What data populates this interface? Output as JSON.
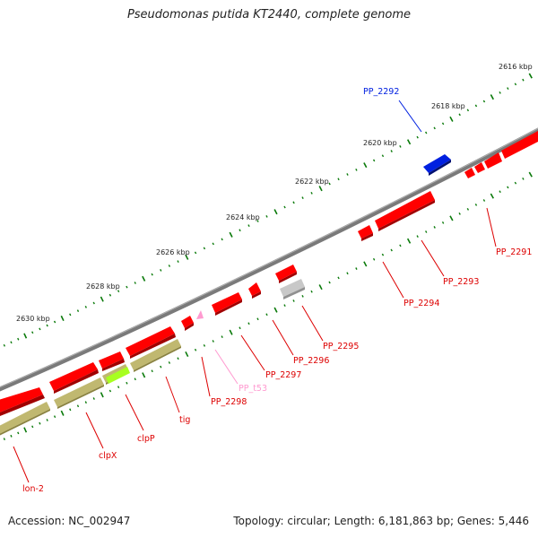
{
  "title": "Pseudomonas putida KT2440, complete genome",
  "footer": {
    "accession": "Accession: NC_002947",
    "summary": "Topology: circular; Length: 6,181,863 bp; Genes: 5,446"
  },
  "colors": {
    "gene_forward": "#ff0000",
    "gene_blue": "#0020e0",
    "gene_grey": "#c8c8c8",
    "gene_pink": "#ff9ad0",
    "operon": "#c0b870",
    "highlight_green": "#a8ff20",
    "backbone": "#808080",
    "tick": "#0a7a0a"
  },
  "tick_labels": [
    "2616 kbp",
    "2618 kbp",
    "2620 kbp",
    "2622 kbp",
    "2624 kbp",
    "2626 kbp",
    "2628 kbp",
    "2630 kbp"
  ],
  "genes": [
    {
      "label": "PP_2291",
      "color": "red"
    },
    {
      "label": "PP_2292",
      "color": "blue"
    },
    {
      "label": "PP_2293",
      "color": "red"
    },
    {
      "label": "PP_2294",
      "color": "red"
    },
    {
      "label": "PP_2295",
      "color": "red"
    },
    {
      "label": "PP_2296",
      "color": "red"
    },
    {
      "label": "PP_2297",
      "color": "red"
    },
    {
      "label": "PP_t53",
      "color": "pink"
    },
    {
      "label": "PP_2298",
      "color": "red"
    },
    {
      "label": "tig",
      "color": "red"
    },
    {
      "label": "clpP",
      "color": "red"
    },
    {
      "label": "clpX",
      "color": "red"
    },
    {
      "label": "lon-2",
      "color": "red"
    }
  ]
}
